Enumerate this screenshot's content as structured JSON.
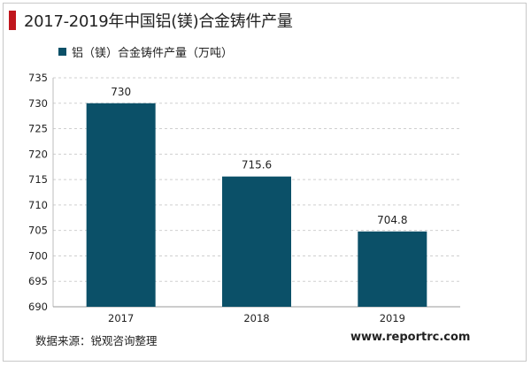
{
  "chart_data": {
    "type": "bar",
    "title": "2017-2019年中国铝(镁)合金铸件产量",
    "categories": [
      "2017",
      "2018",
      "2019"
    ],
    "series": [
      {
        "name": "铝（镁）合金铸件产量（万吨）",
        "values": [
          730,
          715.6,
          704.8
        ]
      }
    ],
    "data_labels": [
      "730",
      "715.6",
      "704.8"
    ],
    "ylim": [
      690,
      735
    ],
    "yticks": [
      690,
      695,
      700,
      705,
      710,
      715,
      720,
      725,
      730,
      735
    ],
    "grid": true,
    "legend_position": "top-left",
    "bar_color": "#0b5068",
    "title_accent_color": "#c0161d"
  },
  "footer": {
    "source": "数据来源：锐观咨询整理",
    "website": "www.reportrc.com"
  }
}
